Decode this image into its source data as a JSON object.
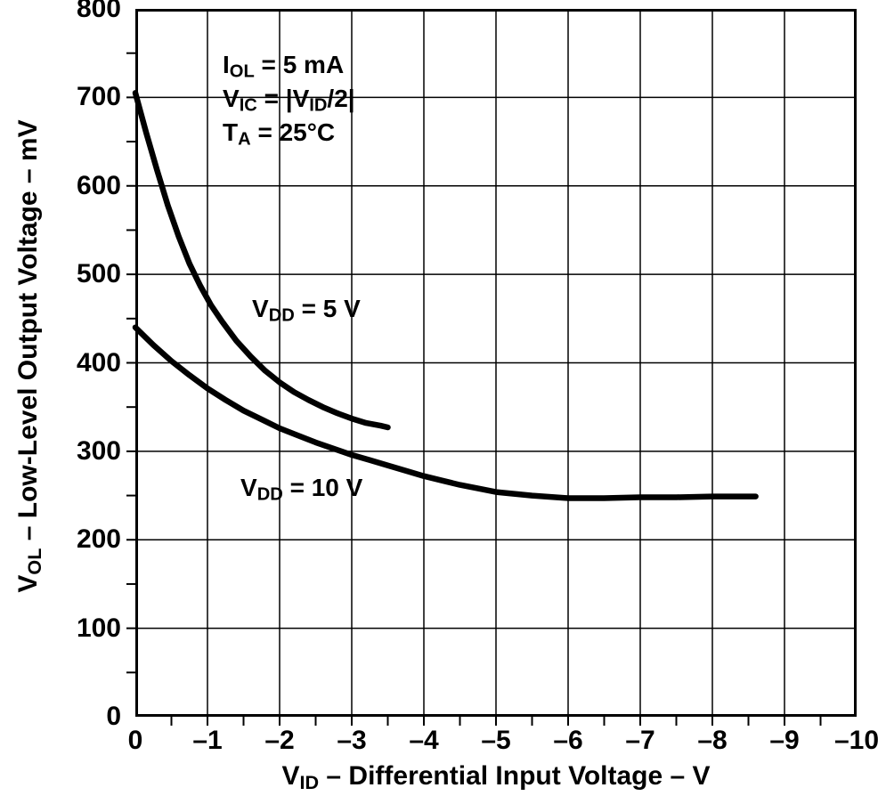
{
  "chart_data": {
    "type": "line",
    "title": "",
    "xlabel": "VID – Differential Input Voltage – V",
    "ylabel": "VOL – Low-Level Output Voltage – mV",
    "xlabel_segments": [
      {
        "text": "V"
      },
      {
        "sub": "ID"
      },
      {
        "text": " – Differential Input Voltage – V"
      }
    ],
    "ylabel_segments": [
      {
        "text": "V"
      },
      {
        "sub": "OL"
      },
      {
        "text": " – Low-Level Output Voltage – mV"
      }
    ],
    "xlim": [
      0,
      -10
    ],
    "ylim": [
      0,
      800
    ],
    "grid": true,
    "line_color": "#000000",
    "grid_color": "#000000",
    "x_ticks": [
      0,
      -1,
      -2,
      -3,
      -4,
      -5,
      -6,
      -7,
      -8,
      -9,
      -10
    ],
    "x_tick_labels": [
      "0",
      "–1",
      "–2",
      "–3",
      "–4",
      "–5",
      "–6",
      "–7",
      "–8",
      "–9",
      "–10"
    ],
    "y_ticks": [
      0,
      100,
      200,
      300,
      400,
      500,
      600,
      700,
      800
    ],
    "y_tick_labels": [
      "0",
      "100",
      "200",
      "300",
      "400",
      "500",
      "600",
      "700",
      "800"
    ],
    "minor_x_step": 0.5,
    "minor_y_step": 50,
    "conditions": {
      "lines": [
        {
          "segments": [
            {
              "text": "I"
            },
            {
              "sub": "OL"
            },
            {
              "text": " = 5 mA"
            }
          ]
        },
        {
          "segments": [
            {
              "text": "V"
            },
            {
              "sub": "IC"
            },
            {
              "text": " =  |V"
            },
            {
              "sub": "ID"
            },
            {
              "text": "/2|"
            }
          ]
        },
        {
          "segments": [
            {
              "text": "T"
            },
            {
              "sub": "A"
            },
            {
              "text": " = 25°C"
            }
          ]
        }
      ]
    },
    "series": [
      {
        "name": "VDD = 5 V",
        "label_segments": [
          {
            "text": "V"
          },
          {
            "sub": "DD"
          },
          {
            "text": " = 5 V"
          }
        ],
        "x": [
          0,
          -0.15,
          -0.3,
          -0.45,
          -0.6,
          -0.75,
          -0.9,
          -1.05,
          -1.2,
          -1.4,
          -1.6,
          -1.8,
          -2.0,
          -2.2,
          -2.4,
          -2.6,
          -2.8,
          -3.0,
          -3.2,
          -3.4,
          -3.5
        ],
        "y": [
          705,
          660,
          618,
          578,
          543,
          512,
          487,
          465,
          447,
          425,
          407,
          391,
          378,
          367,
          358,
          350,
          343,
          337,
          332,
          329,
          327
        ]
      },
      {
        "name": "VDD = 10 V",
        "label_segments": [
          {
            "text": "V"
          },
          {
            "sub": "DD"
          },
          {
            "text": " = 10 V"
          }
        ],
        "x": [
          0,
          -0.25,
          -0.5,
          -0.75,
          -1,
          -1.25,
          -1.5,
          -1.75,
          -2,
          -2.25,
          -2.5,
          -2.75,
          -3,
          -3.25,
          -3.5,
          -3.75,
          -4,
          -4.25,
          -4.5,
          -4.75,
          -5,
          -5.5,
          -6,
          -6.5,
          -7,
          -7.5,
          -8,
          -8.6
        ],
        "y": [
          440,
          420,
          402,
          386,
          371,
          358,
          346,
          336,
          326,
          318,
          310,
          303,
          296,
          290,
          284,
          278,
          272,
          267,
          262,
          258,
          254,
          250,
          247,
          247,
          248,
          248,
          249,
          249
        ]
      }
    ]
  }
}
